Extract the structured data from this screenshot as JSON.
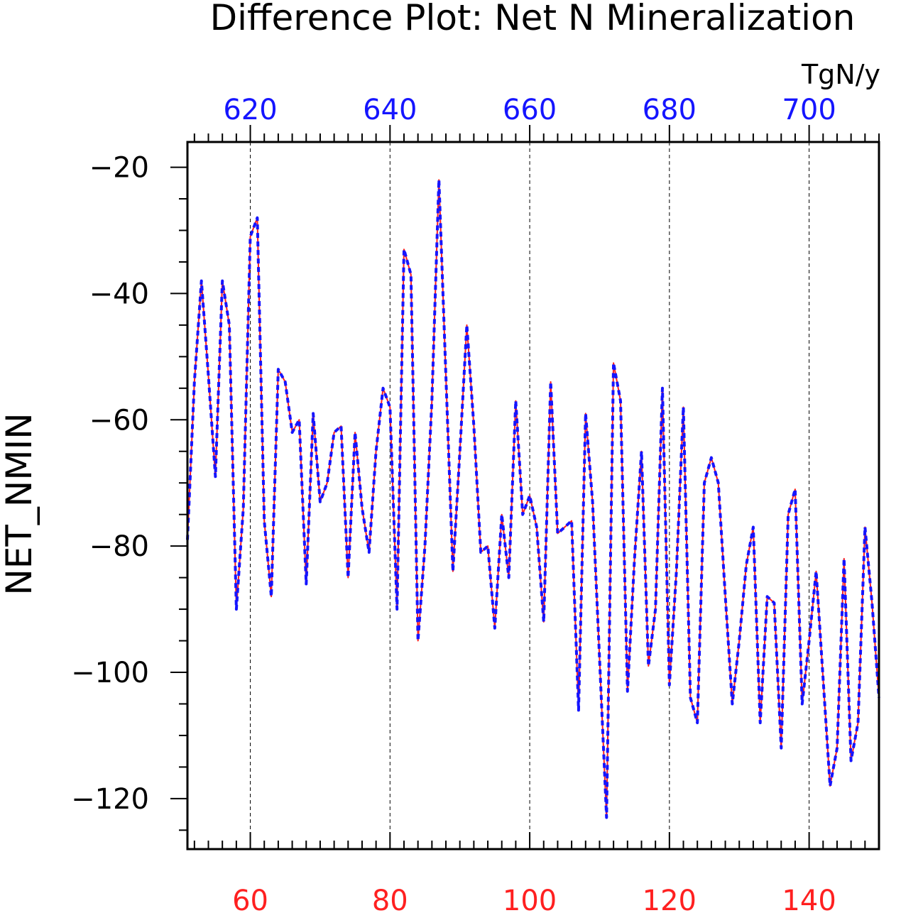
{
  "chart_data": {
    "type": "line",
    "title": "Difference Plot: Net N Mineralization",
    "units": "TgN/y",
    "ylabel": "NET_NMIN",
    "xlim": [
      51,
      150
    ],
    "ylim": [
      -128,
      -16
    ],
    "x_ticks": [
      60,
      80,
      100,
      120,
      140
    ],
    "x_top_ticks": [
      620,
      640,
      660,
      680,
      700
    ],
    "y_ticks": [
      -20,
      -40,
      -60,
      -80,
      -100,
      -120
    ],
    "grid": "vertical dashed at major x ticks",
    "colors": {
      "series_a": "#ff2020",
      "series_b": "#1515ff",
      "bottom_ticks": "#ff2020",
      "top_ticks": "#1515ff"
    },
    "series": [
      {
        "values": [
          -79,
          -54,
          -38,
          -53,
          -69,
          -38,
          -45,
          -90,
          -74,
          -31,
          -28,
          -76,
          -88,
          -52,
          -54,
          -62,
          -60,
          -86,
          -59,
          -73,
          -70,
          -62,
          -61,
          -85,
          -62,
          -74,
          -81,
          -65,
          -55,
          -58,
          -90,
          -33,
          -37,
          -95,
          -80,
          -57,
          -22,
          -53,
          -84,
          -65,
          -45,
          -61,
          -81,
          -80,
          -93,
          -75,
          -85,
          -57,
          -75,
          -72,
          -77,
          -92,
          -54,
          -78,
          -77,
          -76,
          -106,
          -59,
          -73,
          -98,
          -123,
          -51,
          -57,
          -103,
          -82,
          -65,
          -99,
          -90,
          -55,
          -102,
          -84,
          -58,
          -104,
          -108,
          -70,
          -66,
          -70,
          -88,
          -105,
          -95,
          -83,
          -77,
          -108,
          -88,
          -89,
          -112,
          -75,
          -71,
          -105,
          -95,
          -84,
          -101,
          -118,
          -112,
          -82,
          -114,
          -108,
          -77,
          -89,
          -104
        ]
      },
      {
        "values": [
          -79,
          -54,
          -38,
          -53,
          -69,
          -38,
          -45,
          -90,
          -74,
          -31,
          -28,
          -76,
          -88,
          -52,
          -54,
          -62,
          -60,
          -86,
          -59,
          -73,
          -70,
          -62,
          -61,
          -85,
          -62,
          -74,
          -81,
          -65,
          -55,
          -58,
          -90,
          -33,
          -37,
          -95,
          -80,
          -57,
          -22,
          -53,
          -84,
          -65,
          -45,
          -61,
          -81,
          -80,
          -93,
          -75,
          -85,
          -57,
          -75,
          -72,
          -77,
          -92,
          -54,
          -78,
          -77,
          -76,
          -106,
          -59,
          -73,
          -98,
          -123,
          -51,
          -57,
          -103,
          -82,
          -65,
          -99,
          -90,
          -55,
          -102,
          -84,
          -58,
          -104,
          -108,
          -70,
          -66,
          -70,
          -88,
          -105,
          -95,
          -83,
          -77,
          -108,
          -88,
          -89,
          -112,
          -75,
          -71,
          -105,
          -95,
          -84,
          -101,
          -118,
          -112,
          -82,
          -114,
          -108,
          -77,
          -89,
          -104
        ]
      }
    ]
  }
}
